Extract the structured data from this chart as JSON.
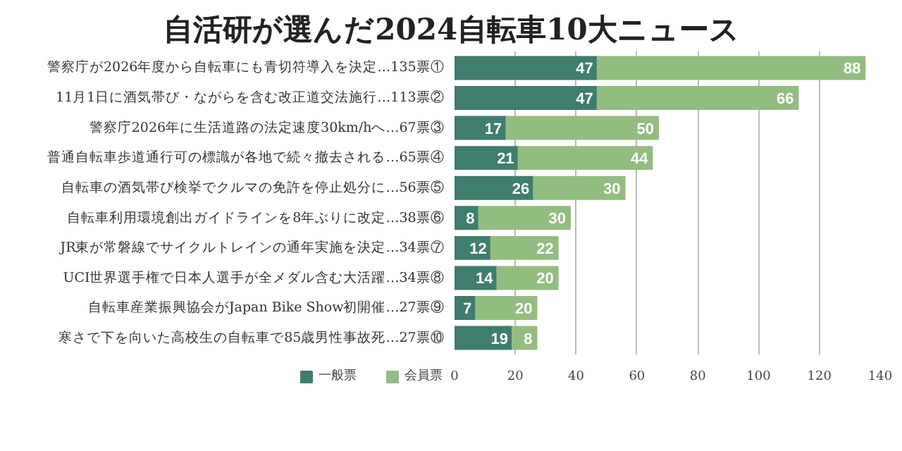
{
  "chart_data": {
    "type": "bar",
    "orientation": "horizontal",
    "stacked": true,
    "title": "自活研が選んだ2024自転車10大ニュース",
    "categories": [
      "警察庁が2026年度から自転車にも青切符導入を決定…135票①",
      "11月1日に酒気帯び・ながらを含む改正道交法施行…113票②",
      "警察庁2026年に生活道路の法定速度30km/hへ…67票③",
      "普通自転車歩道通行可の標識が各地で続々撤去される…65票④",
      "自転車の酒気帯び検挙でクルマの免許を停止処分に…56票⑤",
      "自転車利用環境創出ガイドラインを8年ぶりに改定…38票⑥",
      "JR東が常磐線でサイクルトレインの通年実施を決定…34票⑦",
      "UCI世界選手権で日本人選手が全メダル含む大活躍…34票⑧",
      "自転車産業振興協会がJapan Bike Show初開催…27票⑨",
      "寒さで下を向いた高校生の自転車で85歳男性事故死…27票⑩"
    ],
    "series": [
      {
        "name": "一般票",
        "color": "#3f7d6e",
        "values": [
          47,
          47,
          17,
          21,
          26,
          8,
          12,
          14,
          7,
          19
        ]
      },
      {
        "name": "会員票",
        "color": "#93bd80",
        "values": [
          88,
          66,
          50,
          44,
          30,
          30,
          22,
          20,
          20,
          8
        ]
      }
    ],
    "xlim": [
      0,
      140
    ],
    "xticks": [
      0,
      20,
      40,
      60,
      80,
      100,
      120,
      140
    ],
    "grid": "x",
    "legend": "bottom",
    "data_labels": true
  }
}
